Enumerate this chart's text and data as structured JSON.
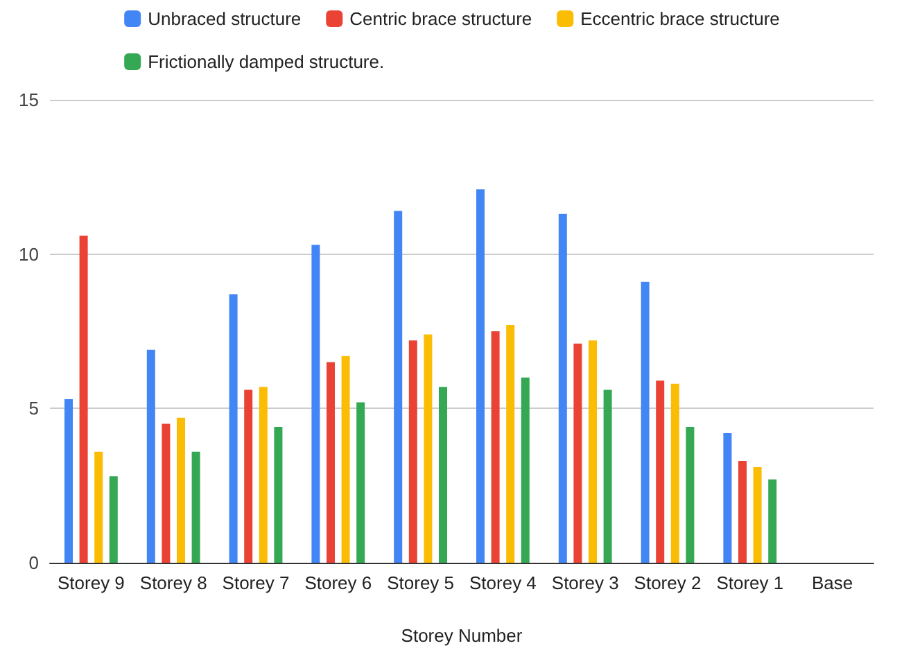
{
  "chart_data": {
    "type": "bar",
    "xlabel": "Storey Number",
    "categories": [
      "Storey 9",
      "Storey 8",
      "Storey 7",
      "Storey 6",
      "Storey 5",
      "Storey 4",
      "Storey 3",
      "Storey 2",
      "Storey 1",
      "Base"
    ],
    "series": [
      {
        "name": "Unbraced structure",
        "color": "#4285f4",
        "values": [
          5.3,
          6.9,
          8.7,
          10.3,
          11.4,
          12.1,
          11.3,
          9.1,
          4.2,
          0
        ]
      },
      {
        "name": "Centric brace structure",
        "color": "#ea4335",
        "values": [
          10.6,
          4.5,
          5.6,
          6.5,
          7.2,
          7.5,
          7.1,
          5.9,
          3.3,
          0
        ]
      },
      {
        "name": "Eccentric brace structure",
        "color": "#fbbc04",
        "values": [
          3.6,
          4.7,
          5.7,
          6.7,
          7.4,
          7.7,
          7.2,
          5.8,
          3.1,
          0
        ]
      },
      {
        "name": "Frictionally damped structure.",
        "color": "#34a853",
        "values": [
          2.8,
          3.6,
          4.4,
          5.2,
          5.7,
          6.0,
          5.6,
          4.4,
          2.7,
          0
        ]
      }
    ],
    "ylim": [
      0,
      15
    ],
    "yticks": [
      0,
      5,
      10,
      15
    ],
    "grid": "y",
    "legend": "top"
  }
}
